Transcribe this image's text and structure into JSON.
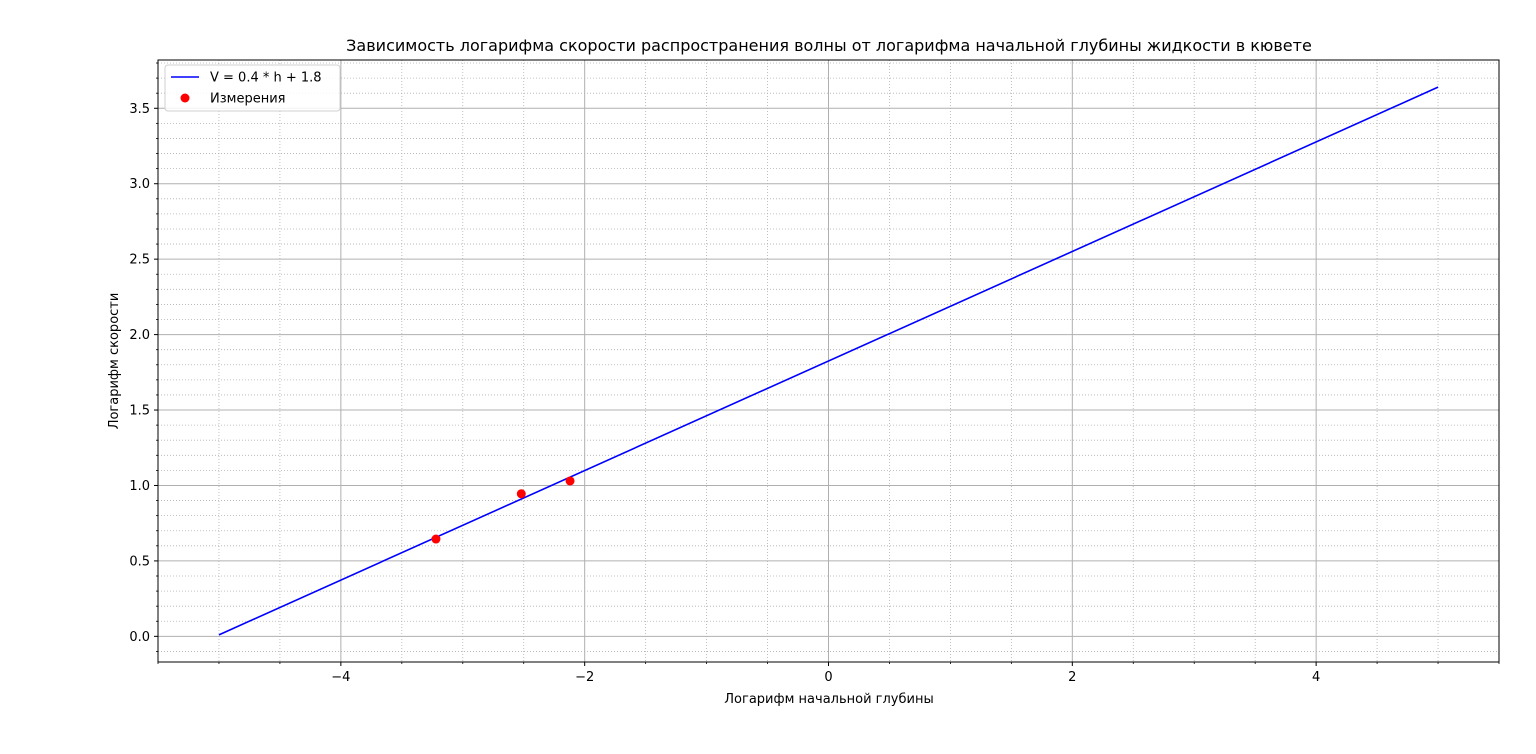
{
  "chart_data": {
    "type": "line",
    "title": "Зависимость логарифма скорости распространения волны от логарифма начальной глубины жидкости в кювете",
    "xlabel": "Логарифм начальной глубины",
    "ylabel": "Логарифм скорости",
    "xlim": [
      -5.5,
      5.5
    ],
    "ylim": [
      -0.17,
      3.82
    ],
    "xticks": [
      -4,
      -2,
      0,
      2,
      4
    ],
    "xtick_labels": [
      "−4",
      "−2",
      "0",
      "2",
      "4"
    ],
    "yticks": [
      0.0,
      0.5,
      1.0,
      1.5,
      2.0,
      2.5,
      3.0,
      3.5
    ],
    "ytick_labels": [
      "0.0",
      "0.5",
      "1.0",
      "1.5",
      "2.0",
      "2.5",
      "3.0",
      "3.5"
    ],
    "x_minor_step": 0.5,
    "y_minor_step": 0.1,
    "grid": "major solid, minor dotted",
    "legend_position": "top-left",
    "series": [
      {
        "name": "V = 0.4 * h  + 1.8",
        "kind": "line",
        "color": "#0000ff",
        "x": [
          -5.0,
          5.0
        ],
        "y": [
          0.01,
          3.64
        ]
      },
      {
        "name": "Измерения",
        "kind": "scatter",
        "color": "#ff0000",
        "x": [
          -3.22,
          -2.52,
          -2.12
        ],
        "y": [
          0.645,
          0.945,
          1.03
        ]
      }
    ]
  }
}
